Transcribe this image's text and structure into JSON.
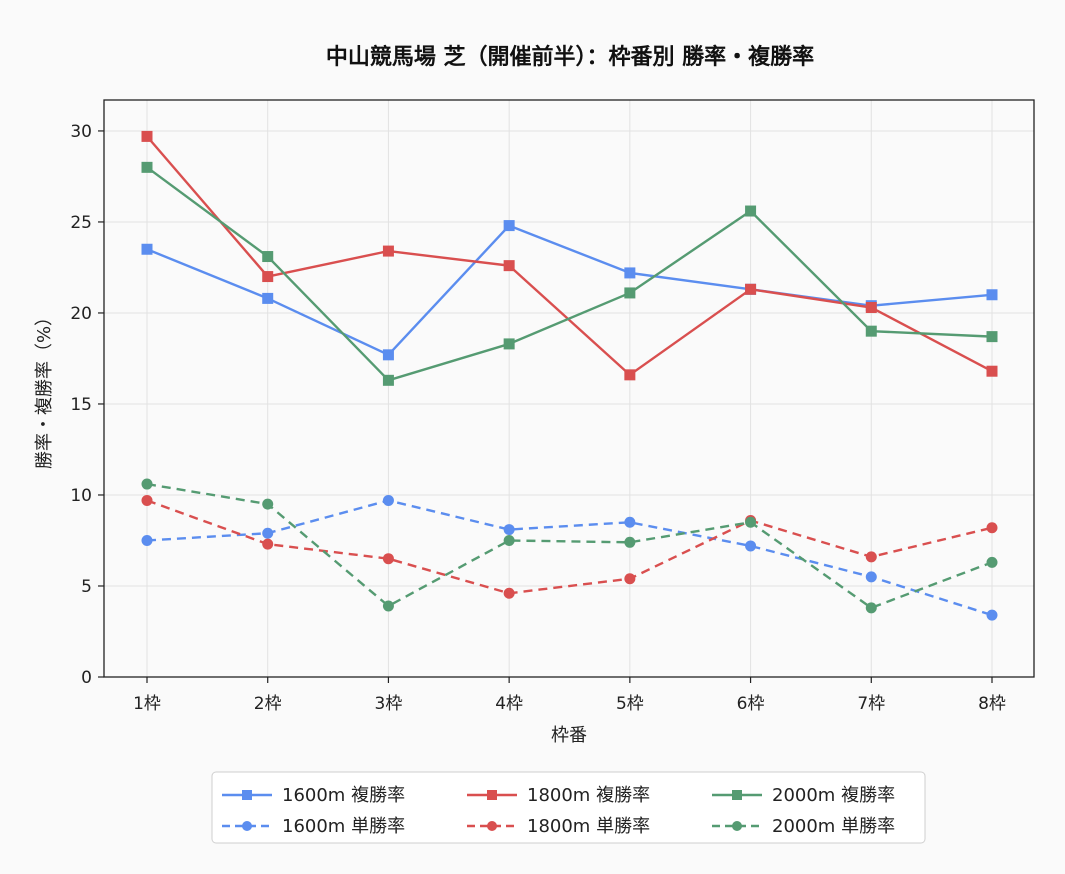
{
  "chart_data": {
    "type": "line",
    "title": "中山競馬場 芝（開催前半）：枠番別 勝率・複勝率",
    "xlabel": "枠番",
    "ylabel": "勝率・複勝率（%）",
    "categories": [
      "1枠",
      "2枠",
      "3枠",
      "4枠",
      "5枠",
      "6枠",
      "7枠",
      "8枠"
    ],
    "ylim": [
      0,
      31.7
    ],
    "yticks": [
      0,
      5,
      10,
      15,
      20,
      25,
      30
    ],
    "grid": true,
    "legend": {
      "position": "bottom-center",
      "columns": 3
    },
    "series": [
      {
        "name": "1600m 複勝率",
        "color": "#5b8def",
        "style": "solid",
        "marker": "square",
        "values": [
          23.5,
          20.8,
          17.7,
          24.8,
          22.2,
          21.3,
          20.4,
          21.0
        ]
      },
      {
        "name": "1600m 単勝率",
        "color": "#5b8def",
        "style": "dashed",
        "marker": "circle",
        "values": [
          7.5,
          7.9,
          9.7,
          8.1,
          8.5,
          7.2,
          5.5,
          3.4
        ]
      },
      {
        "name": "1800m 複勝率",
        "color": "#d94f4f",
        "style": "solid",
        "marker": "square",
        "values": [
          29.7,
          22.0,
          23.4,
          22.6,
          16.6,
          21.3,
          20.3,
          16.8
        ]
      },
      {
        "name": "1800m 単勝率",
        "color": "#d94f4f",
        "style": "dashed",
        "marker": "circle",
        "values": [
          9.7,
          7.3,
          6.5,
          4.6,
          5.4,
          8.6,
          6.6,
          8.2
        ]
      },
      {
        "name": "2000m 複勝率",
        "color": "#559b72",
        "style": "solid",
        "marker": "square",
        "values": [
          28.0,
          23.1,
          16.3,
          18.3,
          21.1,
          25.6,
          19.0,
          18.7
        ]
      },
      {
        "name": "2000m 単勝率",
        "color": "#559b72",
        "style": "dashed",
        "marker": "circle",
        "values": [
          10.6,
          9.5,
          3.9,
          7.5,
          7.4,
          8.5,
          3.8,
          6.3
        ]
      }
    ]
  }
}
